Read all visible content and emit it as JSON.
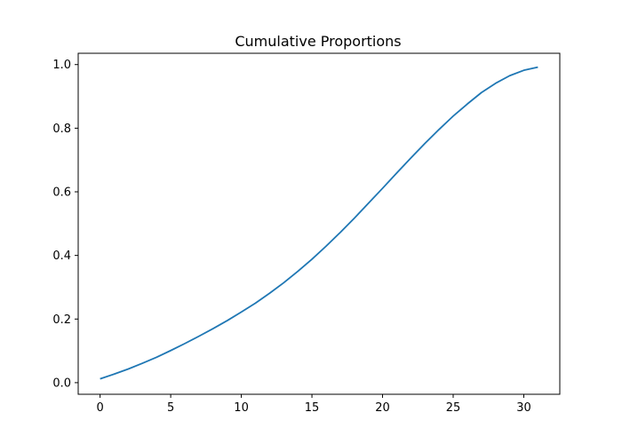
{
  "chart_data": {
    "type": "line",
    "title": "Cumulative Proportions",
    "xlabel": "",
    "ylabel": "",
    "xlim": [
      -1.55,
      32.55
    ],
    "ylim": [
      -0.0365,
      1.0355
    ],
    "xticks": [
      0,
      5,
      10,
      15,
      20,
      25,
      30
    ],
    "yticks": [
      0.0,
      0.2,
      0.4,
      0.6,
      0.8,
      1.0
    ],
    "xtick_labels": [
      "0",
      "5",
      "10",
      "15",
      "20",
      "25",
      "30"
    ],
    "ytick_labels": [
      "0.0",
      "0.2",
      "0.4",
      "0.6",
      "0.8",
      "1.0"
    ],
    "grid": false,
    "series": [
      {
        "color": "#1f77b4",
        "x": [
          0,
          1,
          2,
          3,
          4,
          5,
          6,
          7,
          8,
          9,
          10,
          11,
          12,
          13,
          14,
          15,
          16,
          17,
          18,
          19,
          20,
          21,
          22,
          23,
          24,
          25,
          26,
          27,
          28,
          29,
          30,
          31
        ],
        "values": [
          0.012,
          0.027,
          0.043,
          0.061,
          0.08,
          0.101,
          0.123,
          0.146,
          0.17,
          0.195,
          0.222,
          0.25,
          0.281,
          0.314,
          0.35,
          0.388,
          0.429,
          0.472,
          0.517,
          0.564,
          0.611,
          0.659,
          0.706,
          0.752,
          0.796,
          0.838,
          0.876,
          0.912,
          0.941,
          0.965,
          0.982,
          0.992
        ]
      }
    ]
  }
}
